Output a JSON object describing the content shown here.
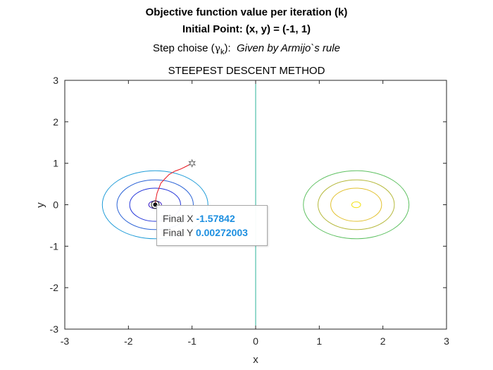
{
  "titles": {
    "line1": "Objective function value per iteration (k)",
    "line2": "Initial Point: (x, y) = (-1, 1)",
    "line3_prefix": "Step choise (",
    "line3_symbol": "γ",
    "line3_subscript": "k",
    "line3_suffix": "):",
    "line3_value": "Given by Armijo`s rule",
    "axes_title": "STEEPEST DESCENT METHOD"
  },
  "datatip": {
    "x_label": "Final X",
    "x_value": "-1.57842",
    "y_label": "Final Y",
    "y_value": "0.00272003"
  },
  "chart_data": {
    "type": "line",
    "title": "STEEPEST DESCENT METHOD",
    "xlabel": "x",
    "ylabel": "y",
    "xlim": [
      -3,
      3
    ],
    "ylim": [
      -3,
      3
    ],
    "xticks": [
      -3,
      -2,
      -1,
      0,
      1,
      2,
      3
    ],
    "yticks": [
      -3,
      -2,
      -1,
      0,
      1,
      2,
      3
    ],
    "xtick_labels": [
      "-3",
      "-2",
      "-1",
      "0",
      "1",
      "2",
      "3"
    ],
    "ytick_labels": [
      "-3",
      "-2",
      "-1",
      "0",
      "1",
      "2",
      "3"
    ],
    "grid": false,
    "contours": [
      {
        "cx": -1.58,
        "cy": 0,
        "rx": 0.1,
        "ry": 0.09,
        "color": "#2c0ec4"
      },
      {
        "cx": -1.58,
        "cy": 0,
        "rx": 0.4,
        "ry": 0.4,
        "color": "#2233d9"
      },
      {
        "cx": -1.58,
        "cy": 0,
        "rx": 0.6,
        "ry": 0.6,
        "color": "#2a62d6"
      },
      {
        "cx": -1.58,
        "cy": 0,
        "rx": 0.83,
        "ry": 0.82,
        "color": "#1f9cd8"
      },
      {
        "cx": 0,
        "cy": 0,
        "rx": 0.003,
        "ry": 3,
        "color": "#2bb39a"
      },
      {
        "cx": 1.58,
        "cy": 0,
        "rx": 0.83,
        "ry": 0.82,
        "color": "#5dc060"
      },
      {
        "cx": 1.58,
        "cy": 0,
        "rx": 0.6,
        "ry": 0.6,
        "color": "#b5b83a"
      },
      {
        "cx": 1.58,
        "cy": 0,
        "rx": 0.4,
        "ry": 0.4,
        "color": "#e2c12e"
      },
      {
        "cx": 1.58,
        "cy": 0,
        "rx": 0.07,
        "ry": 0.07,
        "color": "#f2e216"
      }
    ],
    "series": [
      {
        "color": "#e8141e",
        "x": [
          -1.0,
          -1.1,
          -1.18,
          -1.27,
          -1.36,
          -1.43,
          -1.49,
          -1.52,
          -1.55,
          -1.57,
          -1.578
        ],
        "y": [
          1.0,
          0.92,
          0.86,
          0.81,
          0.73,
          0.62,
          0.52,
          0.4,
          0.28,
          0.12,
          0.0027
        ]
      }
    ],
    "start_point": {
      "x": -1,
      "y": 1
    },
    "final_point": {
      "x": -1.57842,
      "y": 0.00272003
    }
  }
}
